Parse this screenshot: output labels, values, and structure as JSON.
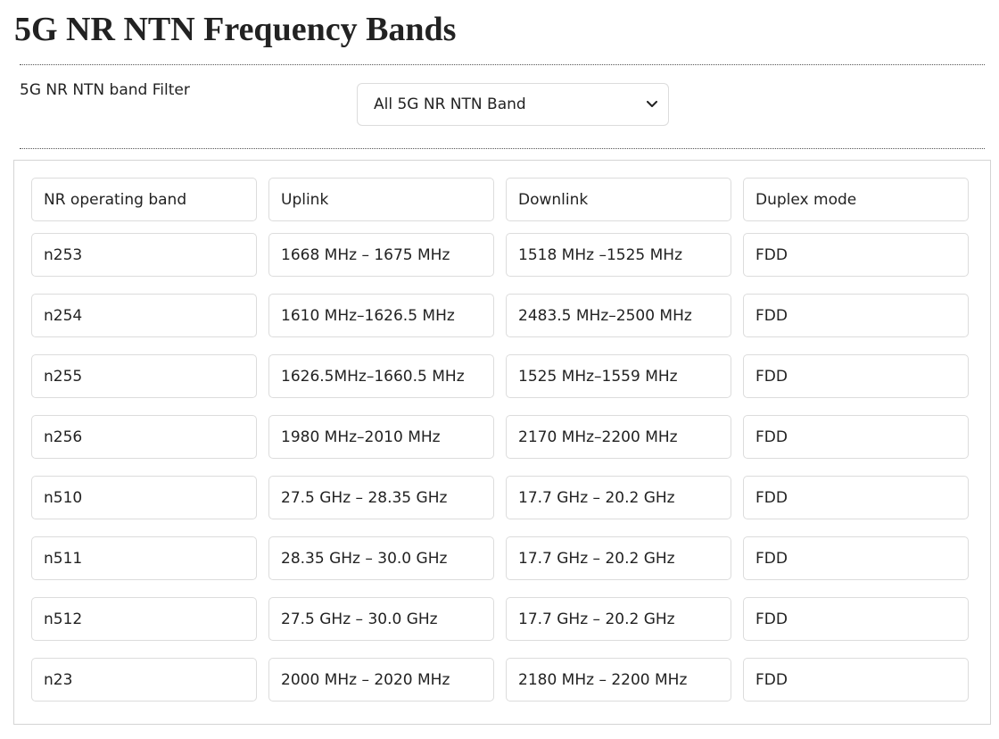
{
  "title": "5G NR NTN Frequency Bands",
  "filter": {
    "label": "5G NR NTN band Filter",
    "selected": "All 5G NR NTN Band"
  },
  "table": {
    "headers": [
      "NR operating band",
      "Uplink",
      "Downlink",
      "Duplex mode"
    ],
    "rows": [
      [
        "n253",
        "1668 MHz – 1675 MHz",
        "1518 MHz –1525 MHz",
        "FDD"
      ],
      [
        "n254",
        "1610 MHz–1626.5 MHz",
        "2483.5 MHz–2500 MHz",
        "FDD"
      ],
      [
        "n255",
        "1626.5MHz–1660.5 MHz",
        "1525 MHz–1559 MHz",
        "FDD"
      ],
      [
        "n256",
        "1980 MHz–2010 MHz",
        "2170 MHz–2200 MHz",
        "FDD"
      ],
      [
        "n510",
        "27.5 GHz – 28.35 GHz",
        "17.7 GHz – 20.2 GHz",
        "FDD"
      ],
      [
        "n511",
        "28.35 GHz – 30.0 GHz",
        "17.7 GHz – 20.2 GHz",
        "FDD"
      ],
      [
        "n512",
        "27.5 GHz – 30.0 GHz",
        "17.7 GHz – 20.2 GHz",
        "FDD"
      ],
      [
        "n23",
        "2000 MHz – 2020 MHz",
        "2180 MHz – 2200 MHz",
        "FDD"
      ]
    ]
  }
}
